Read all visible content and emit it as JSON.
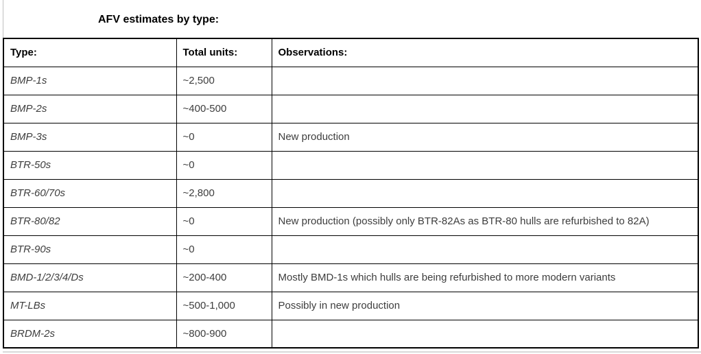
{
  "title": "AFV estimates by type:",
  "table": {
    "headers": [
      "Type:",
      "Total units:",
      "Observations:"
    ],
    "rows": [
      {
        "type": "BMP-1s",
        "units": "~2,500",
        "obs": ""
      },
      {
        "type": "BMP-2s",
        "units": "~400-500",
        "obs": ""
      },
      {
        "type": "BMP-3s",
        "units": "~0",
        "obs": "New production"
      },
      {
        "type": "BTR-50s",
        "units": "~0",
        "obs": ""
      },
      {
        "type": "BTR-60/70s",
        "units": "~2,800",
        "obs": ""
      },
      {
        "type": "BTR-80/82",
        "units": "~0",
        "obs": "New production (possibly only BTR-82As as BTR-80 hulls are refurbished to 82A)"
      },
      {
        "type": "BTR-90s",
        "units": "~0",
        "obs": ""
      },
      {
        "type": "BMD-1/2/3/4/Ds",
        "units": "~200-400",
        "obs": "Mostly BMD-1s which hulls are being refurbished to more modern variants"
      },
      {
        "type": "MT-LBs",
        "units": "~500-1,000",
        "obs": "Possibly in new production"
      },
      {
        "type": "BRDM-2s",
        "units": "~800-900",
        "obs": ""
      }
    ]
  },
  "colors": {
    "border": "#000000",
    "header_text": "#000000",
    "body_text": "#3d3d3d",
    "page_edge": "#bfbfbf",
    "background": "#ffffff"
  }
}
